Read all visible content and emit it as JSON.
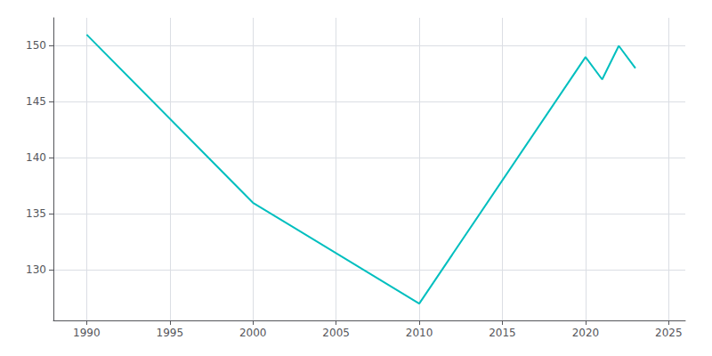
{
  "chart_data": {
    "type": "line",
    "x": [
      1990,
      2000,
      2010,
      2020,
      2021,
      2022,
      2023
    ],
    "values": [
      151,
      136,
      127,
      149,
      147,
      150,
      148
    ],
    "color": "#00BFBF",
    "xlim": [
      1988,
      2026
    ],
    "ylim": [
      125.5,
      152.5
    ],
    "xticks": [
      1990,
      1995,
      2000,
      2005,
      2010,
      2015,
      2020,
      2025
    ],
    "yticks": [
      130,
      135,
      140,
      145,
      150
    ],
    "grid": true
  }
}
